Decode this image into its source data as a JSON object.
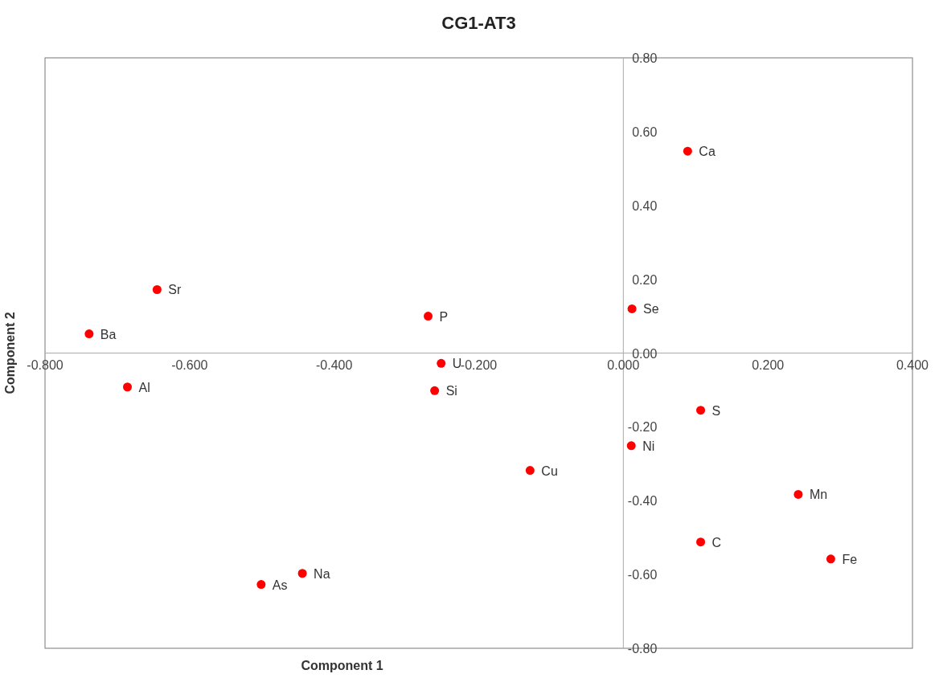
{
  "chart_data": {
    "type": "scatter",
    "title": "CG1-AT3",
    "xlabel": "Component 1",
    "ylabel": "Component 2",
    "x": [
      0.089,
      -0.645,
      -0.739,
      -0.27,
      0.012,
      -0.252,
      -0.686,
      -0.261,
      0.107,
      0.011,
      -0.129,
      0.242,
      0.107,
      0.287,
      -0.444,
      -0.501
    ],
    "series": [
      {
        "color": "#ff0000",
        "values": [
          0.547,
          0.172,
          0.052,
          0.1,
          0.12,
          -0.028,
          -0.092,
          -0.102,
          -0.155,
          -0.251,
          -0.318,
          -0.383,
          -0.512,
          -0.558,
          -0.597,
          -0.627
        ]
      }
    ],
    "annotations": [
      {
        "text": "Ca",
        "x": 0.089,
        "y": 0.547
      },
      {
        "text": "Sr",
        "x": -0.645,
        "y": 0.172
      },
      {
        "text": "Ba",
        "x": -0.739,
        "y": 0.052
      },
      {
        "text": "P",
        "x": -0.27,
        "y": 0.1
      },
      {
        "text": "Se",
        "x": 0.012,
        "y": 0.12
      },
      {
        "text": "U",
        "x": -0.252,
        "y": -0.028
      },
      {
        "text": "Al",
        "x": -0.686,
        "y": -0.092
      },
      {
        "text": "Si",
        "x": -0.261,
        "y": -0.102
      },
      {
        "text": "S",
        "x": 0.107,
        "y": -0.155
      },
      {
        "text": "Ni",
        "x": 0.011,
        "y": -0.251
      },
      {
        "text": "Cu",
        "x": -0.129,
        "y": -0.318
      },
      {
        "text": "Mn",
        "x": 0.242,
        "y": -0.383
      },
      {
        "text": "C",
        "x": 0.107,
        "y": -0.512
      },
      {
        "text": "Fe",
        "x": 0.287,
        "y": -0.558
      },
      {
        "text": "Na",
        "x": -0.444,
        "y": -0.597
      },
      {
        "text": "As",
        "x": -0.501,
        "y": -0.627
      }
    ],
    "xlim": [
      -0.8,
      0.4
    ],
    "ylim": [
      -0.8,
      0.8
    ],
    "xticks": [
      {
        "value": -0.8,
        "label": "-0.800"
      },
      {
        "value": -0.6,
        "label": "-0.600"
      },
      {
        "value": -0.4,
        "label": "-0.400"
      },
      {
        "value": -0.2,
        "label": "-0.200"
      },
      {
        "value": 0,
        "label": "0.000"
      },
      {
        "value": 0.2,
        "label": "0.200"
      },
      {
        "value": 0.4,
        "label": "0.400"
      }
    ],
    "yticks": [
      {
        "value": -0.8,
        "label": "-0.80"
      },
      {
        "value": -0.6,
        "label": "-0.60"
      },
      {
        "value": -0.4,
        "label": "-0.40"
      },
      {
        "value": -0.2,
        "label": "-0.20"
      },
      {
        "value": 0,
        "label": "0.00"
      },
      {
        "value": 0.2,
        "label": "0.20"
      },
      {
        "value": 0.4,
        "label": "0.40"
      },
      {
        "value": 0.6,
        "label": "0.60"
      },
      {
        "value": 0.8,
        "label": "0.80"
      }
    ],
    "marker": "circle",
    "grid": false
  }
}
